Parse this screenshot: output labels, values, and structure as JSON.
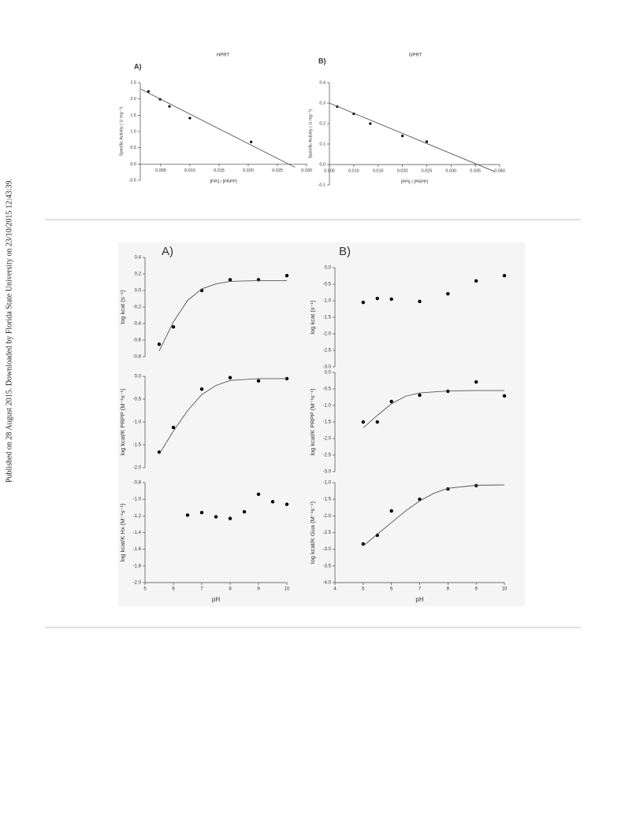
{
  "side_note": "Published on 28 August 2015. Downloaded by Florida State University on 23/10/2015 12:43:39.",
  "chart_data": [
    {
      "type": "scatter",
      "panel": "A)",
      "title": "HPRT",
      "x_label": "[PPi] / [PRPP]",
      "y_label": "Specific Activity ( U mg⁻¹)",
      "xlim": [
        0.0015,
        0.03
      ],
      "ylim": [
        -0.5,
        2.5
      ],
      "xticks": [
        0.005,
        {
          "value": 0.01,
          "label": "0.010"
        },
        0.015,
        {
          "value": 0.02,
          "label": "0.020"
        },
        0.025,
        {
          "value": 0.03,
          "label": "0.030"
        }
      ],
      "yticks": [
        -0.5,
        {
          "value": 0,
          "label": "0.0"
        },
        0.5,
        {
          "value": 1,
          "label": "1.0"
        },
        1.5,
        {
          "value": 2,
          "label": "2.0"
        },
        2.5
      ],
      "series": [
        {
          "mode": "markers",
          "color": "#000000",
          "x": [
            0.0029,
            0.0049,
            0.0065,
            0.01,
            0.0205
          ],
          "values": [
            2.23,
            1.99,
            1.77,
            1.41,
            0.68
          ]
        },
        {
          "mode": "line",
          "color": "#555555",
          "x": [
            0.0016,
            0.028
          ],
          "values": [
            2.3,
            -0.1
          ]
        }
      ]
    },
    {
      "type": "scatter",
      "panel": "B)",
      "title": "GPRT",
      "x_label": "[PPi] / [PRPP]",
      "y_label": "Specific Activity ( U mg⁻¹)",
      "xlim": [
        0.005,
        0.04
      ],
      "ylim": [
        -0.1,
        0.4
      ],
      "xticks": [
        0.005,
        {
          "value": 0.01,
          "label": "0.010"
        },
        0.015,
        {
          "value": 0.02,
          "label": "0.020"
        },
        0.025,
        {
          "value": 0.03,
          "label": "0.030"
        },
        0.035,
        {
          "value": 0.04,
          "label": "0.040"
        }
      ],
      "yticks": [
        -0.1,
        {
          "value": 0,
          "label": "0.0"
        },
        0.1,
        0.2,
        0.3,
        0.4
      ],
      "series": [
        {
          "mode": "markers",
          "color": "#000000",
          "x": [
            0.0066,
            0.01,
            0.0134,
            0.02,
            0.025
          ],
          "values": [
            0.283,
            0.248,
            0.2,
            0.14,
            0.112
          ]
        },
        {
          "mode": "line",
          "color": "#555555",
          "x": [
            0.005,
            0.039
          ],
          "values": [
            0.3,
            -0.035
          ]
        }
      ]
    },
    {
      "type": "scatter",
      "panel": "A)",
      "y_label": "log kcat (s⁻¹)",
      "xlim": [
        5,
        10
      ],
      "ylim": [
        -0.8,
        0.4
      ],
      "yticks": [
        -0.8,
        -0.6,
        -0.4,
        -0.2,
        {
          "value": 0,
          "label": "0.0"
        },
        0.2,
        0.4
      ],
      "series": [
        {
          "mode": "markers",
          "color": "#000000",
          "x": [
            5.5,
            6,
            7,
            8,
            9,
            10
          ],
          "values": [
            -0.65,
            -0.44,
            0,
            0.13,
            0.13,
            0.18
          ]
        },
        {
          "mode": "line",
          "color": "#555555",
          "x": [
            5.5,
            6,
            6.5,
            7,
            7.5,
            8,
            9,
            10
          ],
          "values": [
            -0.73,
            -0.38,
            -0.12,
            0.02,
            0.08,
            0.11,
            0.12,
            0.12
          ]
        }
      ]
    },
    {
      "type": "scatter",
      "y_label": "log kcat/K PRPP (M⁻¹s⁻¹)",
      "xlim": [
        5,
        10
      ],
      "ylim": [
        -2,
        0
      ],
      "yticks": [
        {
          "value": -2,
          "label": "-2.0"
        },
        -1.5,
        {
          "value": -1,
          "label": "-1.0"
        },
        -0.5,
        {
          "value": 0,
          "label": "0.0"
        }
      ],
      "series": [
        {
          "mode": "markers",
          "color": "#000000",
          "x": [
            5.5,
            6,
            7,
            8,
            9,
            10
          ],
          "values": [
            -1.66,
            -1.12,
            -0.28,
            -0.03,
            -0.1,
            -0.05
          ]
        },
        {
          "mode": "line",
          "color": "#555555",
          "x": [
            5.5,
            6,
            6.5,
            7,
            7.5,
            8,
            9,
            10
          ],
          "values": [
            -1.7,
            -1.2,
            -0.75,
            -0.4,
            -0.2,
            -0.09,
            -0.05,
            -0.05
          ]
        }
      ]
    },
    {
      "type": "scatter",
      "x_label": "pH",
      "y_label": "log kcat/K Hx (M⁻¹s⁻¹)",
      "xlim": [
        5,
        10
      ],
      "ylim": [
        -2,
        -0.8
      ],
      "xticks": [
        5,
        6,
        7,
        8,
        9,
        10
      ],
      "yticks": [
        {
          "value": -2,
          "label": "-2.0"
        },
        -1.8,
        -1.6,
        -1.4,
        -1.2,
        {
          "value": -1,
          "label": "-1.0"
        },
        -0.8
      ],
      "series": [
        {
          "mode": "markers",
          "color": "#000000",
          "x": [
            6.5,
            7,
            7.5,
            8,
            8.5,
            9,
            9.5,
            10
          ],
          "values": [
            -1.19,
            -1.16,
            -1.21,
            -1.23,
            -1.15,
            -0.94,
            -1.03,
            -1.06
          ]
        }
      ]
    },
    {
      "type": "scatter",
      "panel": "B)",
      "y_label": "log kcat (s⁻¹)",
      "xlim": [
        4,
        10
      ],
      "ylim": [
        -3,
        0
      ],
      "yticks": [
        {
          "value": -3,
          "label": "-3.0"
        },
        -2.5,
        {
          "value": -2,
          "label": "-2.0"
        },
        -1.5,
        {
          "value": -1,
          "label": "-1.0"
        },
        -0.5,
        {
          "value": 0,
          "label": "0.0"
        }
      ],
      "series": [
        {
          "mode": "markers",
          "color": "#000000",
          "x": [
            5,
            5.5,
            6,
            7,
            8,
            9,
            10
          ],
          "values": [
            -1.05,
            -0.93,
            -0.95,
            -1.02,
            -0.79,
            -0.4,
            -0.24
          ]
        }
      ]
    },
    {
      "type": "scatter",
      "y_label": "log kcat/K PRPP (M⁻¹s⁻¹)",
      "xlim": [
        4,
        10
      ],
      "ylim": [
        -3,
        0
      ],
      "yticks": [
        {
          "value": -3,
          "label": "-3.0"
        },
        -2.5,
        {
          "value": -2,
          "label": "-2.0"
        },
        -1.5,
        {
          "value": -1,
          "label": "-1.0"
        },
        -0.5,
        {
          "value": 0,
          "label": "0.0"
        }
      ],
      "series": [
        {
          "mode": "markers",
          "color": "#000000",
          "x": [
            5,
            5.5,
            6,
            7,
            8,
            9,
            10
          ],
          "values": [
            -1.5,
            -1.5,
            -0.88,
            -0.69,
            -0.57,
            -0.29,
            -0.71
          ]
        },
        {
          "mode": "line",
          "color": "#555555",
          "x": [
            5,
            5.5,
            6,
            6.5,
            7,
            8,
            9,
            10
          ],
          "values": [
            -1.68,
            -1.3,
            -0.95,
            -0.72,
            -0.62,
            -0.56,
            -0.55,
            -0.55
          ]
        }
      ]
    },
    {
      "type": "scatter",
      "x_label": "pH",
      "y_label": "log kcat/K Gua (M⁻¹s⁻¹)",
      "xlim": [
        4,
        10
      ],
      "ylim": [
        -4,
        -1
      ],
      "xticks": [
        4,
        5,
        6,
        7,
        8,
        9,
        10
      ],
      "yticks": [
        {
          "value": -4,
          "label": "-4.0"
        },
        -3.5,
        {
          "value": -3,
          "label": "-3.0"
        },
        -2.5,
        {
          "value": -2,
          "label": "-2.0"
        },
        -1.5,
        {
          "value": -1,
          "label": "-1.0"
        }
      ],
      "series": [
        {
          "mode": "markers",
          "color": "#000000",
          "x": [
            5,
            5.5,
            6,
            7,
            8,
            9
          ],
          "values": [
            -2.84,
            -2.58,
            -1.85,
            -1.5,
            -1.19,
            -1.09
          ]
        },
        {
          "mode": "line",
          "color": "#555555",
          "x": [
            5,
            5.5,
            6,
            6.5,
            7,
            7.5,
            8,
            9,
            10
          ],
          "values": [
            -2.9,
            -2.55,
            -2.2,
            -1.85,
            -1.55,
            -1.32,
            -1.17,
            -1.08,
            -1.07
          ]
        }
      ]
    }
  ]
}
